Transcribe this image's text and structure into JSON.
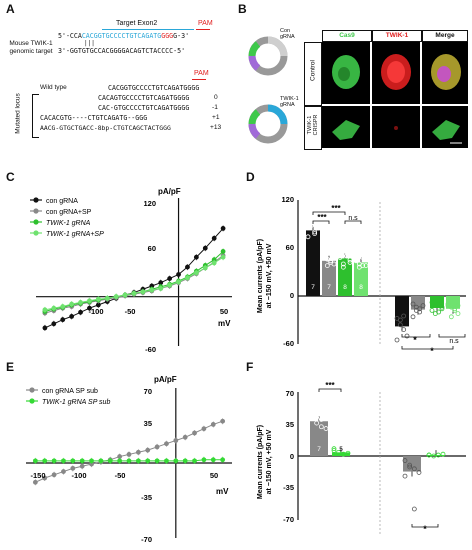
{
  "panelA": {
    "label": "A",
    "target_title": "Target Exon2",
    "pam": "PAM",
    "genomic_label_line1": "Mouse TWIK-1",
    "genomic_label_line2": "genomic target",
    "seq_top_prefix": "5'-CCA",
    "seq_top_target": "CACGGTGCCCCTGTCAGATG",
    "seq_top_pam": "GGG",
    "seq_top_suffix": "G-3'",
    "seq_bottom": "3'-GGTGTGCCACGGGGACAGTCTACCCC-5'",
    "wild_type_label": "Wild type",
    "wild_type_seq": "CACGGTGCCCCTGTCAGATGGGG",
    "mutated_label": "Mutated locus",
    "mutated_rows": [
      {
        "seq": "CACAGTGCCCCTGTCAGATGGGG",
        "change": "0"
      },
      {
        "seq": "CAC-GTGCCCCTGTCAGATGGGG",
        "change": "-1"
      },
      {
        "seq": "CACACGTG----CTGTCAGATG--GGG",
        "change": "+1"
      },
      {
        "seq": "AACG-GTGCTGACC-8bp-CTGTCAGCTACTGGG",
        "change": "+13"
      }
    ]
  },
  "panelB": {
    "label": "B",
    "col_headers": [
      "Cas9",
      "TWIK-1",
      "Merge"
    ],
    "row_labels": [
      "Control",
      "TWIK-1 CRISPR"
    ],
    "plasmid_top": [
      "Con",
      "gRNA"
    ],
    "plasmid_bottom": [
      "TWIK-1",
      "gRNA"
    ],
    "colors": {
      "cas9": "#3ec94a",
      "twik1": "#e02020",
      "merge": "#d8c83a"
    }
  },
  "panelC": {
    "label": "C",
    "ylabel": "pA/pF",
    "xlabel": "mV",
    "x_ticks": [
      "-100",
      "-50",
      "50"
    ],
    "y_ticks": [
      "120",
      "60",
      "-60"
    ],
    "legend": [
      "con gRNA",
      "con gRNA+SP",
      "TWIK-1 gRNA",
      "TWIK-1 gRNA+SP"
    ]
  },
  "panelD": {
    "label": "D",
    "ylabel_lines": [
      "Mean currents (pA/pF)",
      "at −150 mV, +50 mV"
    ],
    "y_ticks": [
      "120",
      "60",
      "0",
      "-60"
    ],
    "n_labels": [
      "7",
      "7",
      "8",
      "8"
    ],
    "sig_top": [
      "***",
      "***",
      "n.s"
    ],
    "sig_bottom": [
      "*",
      "n.s",
      "*"
    ]
  },
  "panelE": {
    "label": "E",
    "ylabel": "pA/pF",
    "xlabel": "mV",
    "x_ticks": [
      "-150",
      "-100",
      "-50",
      "50"
    ],
    "y_ticks": [
      "70",
      "35",
      "-35",
      "-70"
    ],
    "legend": [
      "con gRNA SP sub",
      "TWIK-1 gRNA SP sub"
    ]
  },
  "panelF": {
    "label": "F",
    "ylabel_lines": [
      "Mean currents (pA/pF)",
      "at −150 mV, +50 mV"
    ],
    "y_ticks": [
      "70",
      "35",
      "0",
      "-35",
      "-70"
    ],
    "n_labels": [
      "7",
      "5"
    ],
    "sig_top": "***",
    "sig_bottom": "*"
  },
  "chart_data": [
    {
      "type": "line",
      "x": [
        -150,
        -140,
        -130,
        -120,
        -110,
        -100,
        -90,
        -80,
        -70,
        -60,
        -50,
        -40,
        -30,
        -20,
        -10,
        0,
        10,
        20,
        30,
        40,
        50
      ],
      "series": [
        {
          "name": "con gRNA",
          "values": [
            -38,
            -33,
            -28,
            -24,
            -19,
            -14,
            -10,
            -6,
            -2,
            2,
            5,
            9,
            13,
            17,
            22,
            27,
            36,
            48,
            59,
            71,
            83
          ]
        },
        {
          "name": "con gRNA+SP",
          "values": [
            -20,
            -17,
            -14,
            -12,
            -9,
            -7,
            -5,
            -3,
            -1,
            1,
            3,
            5,
            7,
            10,
            13,
            17,
            22,
            28,
            35,
            42,
            50
          ]
        },
        {
          "name": "TWIK-1 gRNA",
          "values": [
            -18,
            -15,
            -13,
            -10,
            -8,
            -6,
            -4,
            -2,
            0,
            2,
            4,
            6,
            9,
            12,
            15,
            19,
            24,
            31,
            38,
            45,
            55
          ]
        },
        {
          "name": "TWIK-1 gRNA+SP",
          "values": [
            -16,
            -14,
            -12,
            -9,
            -7,
            -5,
            -3,
            -2,
            0,
            2,
            4,
            6,
            8,
            10,
            14,
            18,
            23,
            29,
            35,
            41,
            48
          ]
        }
      ],
      "xlabel": "mV",
      "ylabel": "pA/pF",
      "xlim": [
        -160,
        60
      ],
      "ylim": [
        -60,
        120
      ]
    },
    {
      "type": "bar",
      "categories": [
        "con gRNA +50",
        "con gRNA+SP +50",
        "TWIK-1 gRNA +50",
        "TWIK-1 gRNA+SP +50",
        "con gRNA -150",
        "con gRNA+SP -150",
        "TWIK-1 gRNA -150",
        "TWIK-1 gRNA+SP -150"
      ],
      "values": [
        82,
        44,
        47,
        42,
        -38,
        -17,
        -15,
        -16
      ],
      "points": [
        [
          92,
          94,
          78,
          85,
          74,
          88,
          80
        ],
        [
          50,
          38,
          44,
          40,
          52,
          46,
          42
        ],
        [
          62,
          40,
          55,
          45,
          48,
          36,
          50,
          42
        ],
        [
          54,
          40,
          38,
          46,
          44,
          36,
          48,
          38
        ],
        [
          -55,
          -30,
          -42,
          -50,
          -28,
          -36,
          -25
        ],
        [
          -10,
          -14,
          -20,
          -12,
          -26,
          -18,
          -16
        ],
        [
          -8,
          -12,
          -20,
          -14,
          -18,
          -22,
          -10,
          -16
        ],
        [
          -10,
          -14,
          -18,
          -22,
          -12,
          -26,
          -16,
          -12
        ]
      ],
      "ylabel": "Mean currents (pA/pF) at −150 mV, +50 mV",
      "ylim": [
        -60,
        120
      ]
    },
    {
      "type": "line",
      "x": [
        -150,
        -140,
        -130,
        -120,
        -110,
        -100,
        -90,
        -80,
        -70,
        -60,
        -50,
        -40,
        -30,
        -20,
        -10,
        0,
        10,
        20,
        30,
        40,
        50
      ],
      "series": [
        {
          "name": "con gRNA SP sub",
          "values": [
            -18,
            -14,
            -11,
            -8,
            -5,
            -3,
            -1,
            1,
            3,
            6,
            8,
            10,
            12,
            15,
            18,
            21,
            24,
            28,
            32,
            36,
            39
          ]
        },
        {
          "name": "TWIK-1 gRNA SP sub",
          "values": [
            2,
            2,
            2,
            2,
            2,
            2,
            2,
            2,
            2,
            2,
            2,
            2,
            2,
            2,
            2,
            2,
            2,
            2,
            3,
            3,
            3
          ]
        }
      ],
      "xlabel": "mV",
      "ylabel": "pA/pF",
      "xlim": [
        -160,
        60
      ],
      "ylim": [
        -70,
        70
      ]
    },
    {
      "type": "bar",
      "categories": [
        "con gRNA SP sub +50",
        "TWIK-1 gRNA SP sub +50",
        "con gRNA SP sub -150",
        "TWIK-1 gRNA SP sub -150"
      ],
      "values": [
        38,
        4,
        -17,
        1
      ],
      "points": [
        [
          50,
          42,
          32,
          30,
          42,
          36,
          40
        ],
        [
          8,
          4,
          2,
          3,
          6
        ],
        [
          -5,
          -12,
          -58,
          -18,
          -22,
          -10,
          -14
        ],
        [
          1,
          0,
          1,
          2,
          1
        ]
      ],
      "ylabel": "Mean currents (pA/pF) at −150 mV, +50 mV",
      "ylim": [
        -70,
        70
      ]
    }
  ]
}
